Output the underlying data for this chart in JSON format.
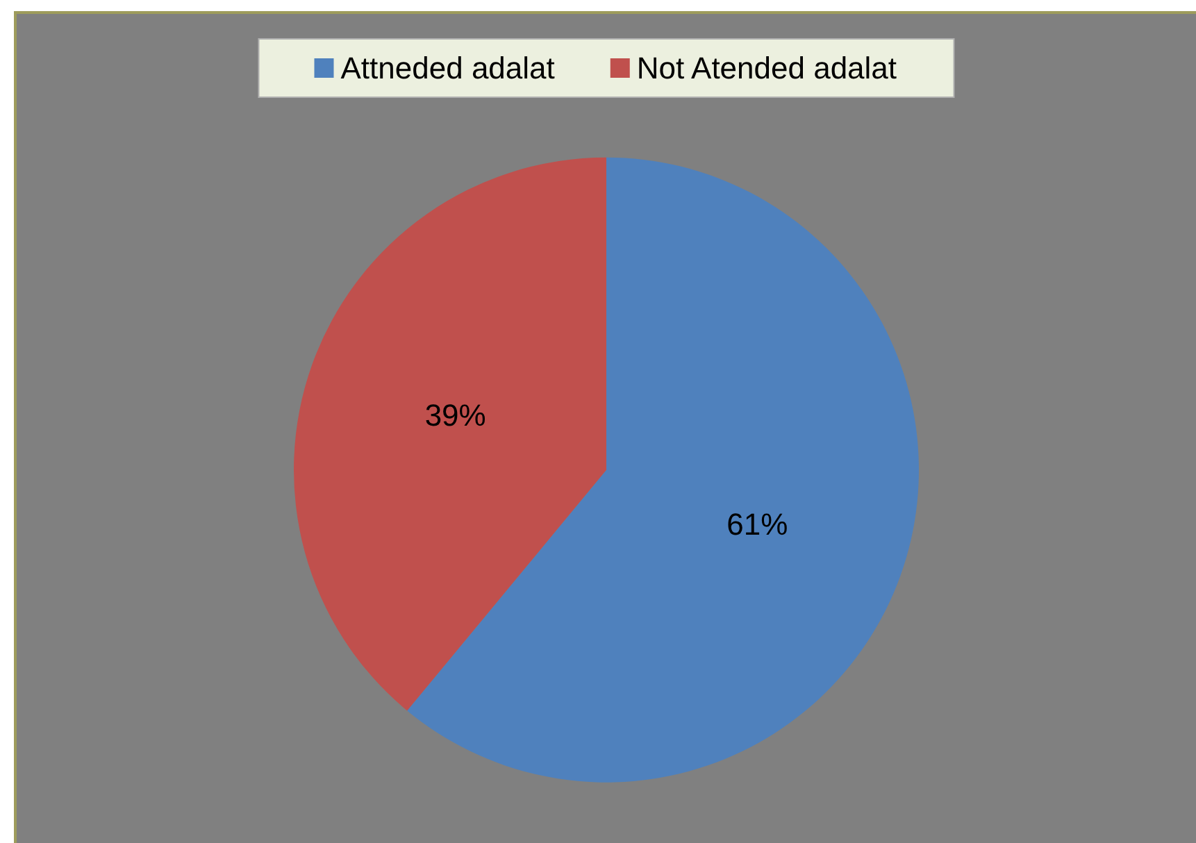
{
  "chart_data": {
    "type": "pie",
    "categories": [
      "Attneded adalat",
      "Not Atended adalat"
    ],
    "values": [
      61,
      39
    ],
    "colors": [
      "#4f81bd",
      "#c0504d"
    ],
    "value_labels": [
      "61%",
      "39%"
    ],
    "legend": "top"
  }
}
